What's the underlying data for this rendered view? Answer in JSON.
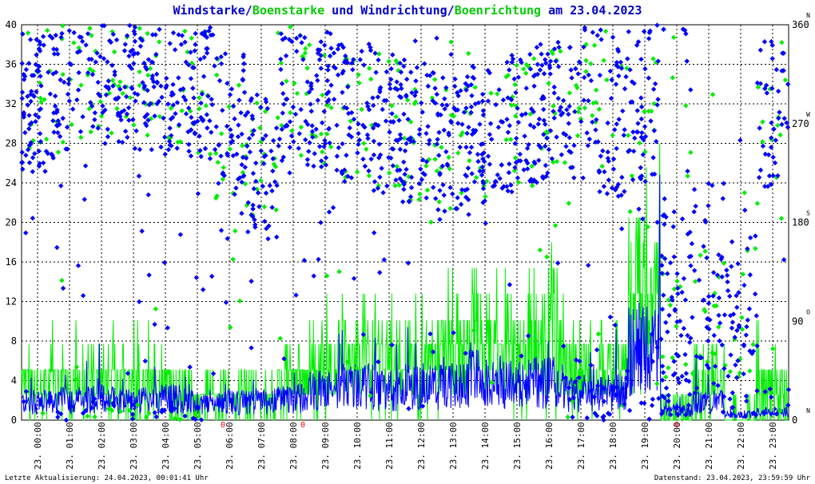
{
  "title": {
    "part1": "Windstarke/",
    "part2": "Boenstarke",
    "part3": " und ",
    "part4": "Windrichtung/",
    "part5": "Boenrichtung",
    "part6": " am 23.04.2023"
  },
  "footer": {
    "left": "Letzte Aktualisierung: 24.04.2023, 00:01:41 Uhr",
    "right": "Datenstand: 23.04.2023, 23:59:59 Uhr"
  },
  "colors": {
    "wind": "#0000ff",
    "gust": "#00ee00",
    "title_blue": "#0000cc",
    "title_green": "#00cc00",
    "marker": "#ff0000",
    "grid": "#000000"
  },
  "chart_data": {
    "type": "scatter",
    "left_axis": {
      "ylim": [
        0,
        40
      ],
      "ticks": [
        "0",
        "4",
        "8",
        "12",
        "16",
        "20",
        "24",
        "28",
        "32",
        "36",
        "40"
      ]
    },
    "right_axis": {
      "ylim": [
        0,
        360
      ],
      "ticks": [
        {
          "value": "0",
          "compass": "N"
        },
        {
          "value": "90",
          "compass": "O"
        },
        {
          "value": "180",
          "compass": "S"
        },
        {
          "value": "270",
          "compass": "W"
        },
        {
          "value": "360",
          "compass": "N"
        }
      ]
    },
    "x_ticks": [
      "23. 00:00",
      "23. 01:00",
      "23. 02:00",
      "23. 03:00",
      "23. 04:00",
      "23. 05:00",
      "23. 06:00",
      "23. 07:00",
      "23. 08:00",
      "23. 09:00",
      "23. 10:00",
      "23. 11:00",
      "23. 12:00",
      "23. 13:00",
      "23. 14:00",
      "23. 15:00",
      "23. 16:00",
      "23. 17:00",
      "23. 18:00",
      "23. 19:00",
      "23. 20:00",
      "23. 21:00",
      "23. 22:00",
      "23. 23:00"
    ],
    "xlim_hours": [
      0,
      24
    ],
    "grid": true,
    "series": [
      {
        "name": "Windstarke",
        "color": "#0000ff",
        "hourly_mean": [
          1.8,
          2.0,
          2.2,
          2.0,
          2.2,
          1.8,
          1.8,
          1.9,
          2.2,
          3.0,
          3.4,
          3.0,
          3.4,
          3.4,
          4.2,
          3.6,
          3.8,
          2.6,
          2.8,
          7.0,
          1.0,
          1.8,
          0.6,
          0.8
        ]
      },
      {
        "name": "Boenstarke",
        "color": "#00ee00",
        "hourly_max": [
          12.8,
          12.8,
          12.8,
          12.8,
          10.1,
          7.7,
          7.7,
          7.7,
          12.8,
          15.4,
          15.4,
          15.4,
          15.4,
          18.0,
          20.5,
          18.0,
          20.5,
          12.8,
          15.4,
          28.0,
          5.1,
          10.1,
          5.1,
          12.8
        ]
      },
      {
        "name": "Windrichtung",
        "color": "#0000ff",
        "hourly_main_deg": [
          290,
          305,
          320,
          310,
          310,
          300,
          270,
          230,
          290,
          290,
          280,
          270,
          260,
          250,
          260,
          270,
          280,
          320,
          300,
          280,
          90,
          120,
          100,
          310
        ]
      },
      {
        "name": "Boenrichtung",
        "color": "#00ee00",
        "hourly_main_deg": [
          300,
          310,
          320,
          310,
          310,
          300,
          260,
          240,
          300,
          290,
          280,
          270,
          260,
          250,
          260,
          270,
          280,
          320,
          300,
          270,
          90,
          110,
          100,
          310
        ]
      }
    ],
    "markers": [
      {
        "label": "0",
        "hour": 6.3
      },
      {
        "label": "0",
        "hour": 8.8
      },
      {
        "label": "0",
        "hour": 20.5
      }
    ]
  }
}
